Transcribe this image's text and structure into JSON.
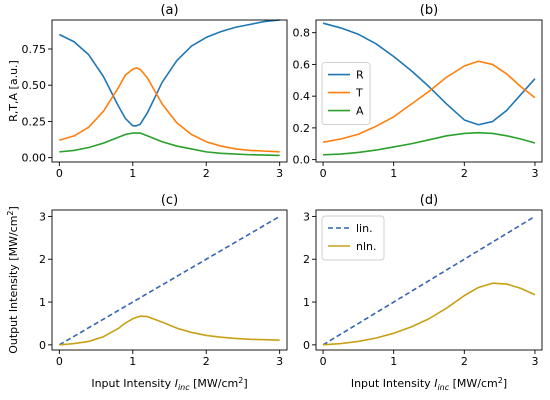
{
  "colors": {
    "R": "#1f77b4",
    "T": "#ff7f0e",
    "A": "#2ca02c",
    "lin": "#3465b4",
    "nln": "#c8a017"
  },
  "chart_data": [
    {
      "type": "line",
      "title": "(a)",
      "xlabel": "",
      "ylabel": "R,T,A [a.u.]",
      "xlim": [
        -0.1,
        3.1
      ],
      "ylim": [
        -0.03,
        0.95
      ],
      "xticks": [
        0,
        1,
        2,
        3
      ],
      "xtick_labels": [
        "0",
        "1",
        "2",
        "3"
      ],
      "yticks": [
        0.0,
        0.25,
        0.5,
        0.75
      ],
      "ytick_labels": [
        "0.00",
        "0.25",
        "0.50",
        "0.75"
      ],
      "legend": null,
      "series": [
        {
          "key": "R",
          "style": "solid",
          "x": [
            0,
            0.2,
            0.4,
            0.6,
            0.8,
            0.9,
            1.0,
            1.05,
            1.1,
            1.2,
            1.4,
            1.6,
            1.8,
            2.0,
            2.2,
            2.4,
            2.6,
            2.8,
            3.0
          ],
          "y": [
            0.85,
            0.8,
            0.71,
            0.56,
            0.36,
            0.27,
            0.22,
            0.22,
            0.23,
            0.31,
            0.52,
            0.67,
            0.77,
            0.83,
            0.87,
            0.9,
            0.92,
            0.94,
            0.95
          ]
        },
        {
          "key": "T",
          "style": "solid",
          "x": [
            0,
            0.2,
            0.4,
            0.6,
            0.8,
            0.9,
            1.0,
            1.05,
            1.1,
            1.2,
            1.4,
            1.6,
            1.8,
            2.0,
            2.2,
            2.4,
            2.6,
            2.8,
            3.0
          ],
          "y": [
            0.12,
            0.15,
            0.21,
            0.32,
            0.48,
            0.57,
            0.61,
            0.62,
            0.61,
            0.55,
            0.37,
            0.24,
            0.16,
            0.11,
            0.08,
            0.06,
            0.05,
            0.045,
            0.04
          ]
        },
        {
          "key": "A",
          "style": "solid",
          "x": [
            0,
            0.2,
            0.4,
            0.6,
            0.8,
            0.9,
            1.0,
            1.05,
            1.1,
            1.2,
            1.4,
            1.6,
            1.8,
            2.0,
            2.2,
            2.4,
            2.6,
            2.8,
            3.0
          ],
          "y": [
            0.04,
            0.05,
            0.07,
            0.1,
            0.14,
            0.16,
            0.17,
            0.17,
            0.17,
            0.15,
            0.11,
            0.08,
            0.06,
            0.04,
            0.03,
            0.025,
            0.02,
            0.018,
            0.015
          ]
        }
      ]
    },
    {
      "type": "line",
      "title": "(b)",
      "xlabel": "",
      "ylabel": "",
      "xlim": [
        -0.1,
        3.1
      ],
      "ylim": [
        -0.015,
        0.88
      ],
      "xticks": [
        0,
        1,
        2,
        3
      ],
      "xtick_labels": [
        "0",
        "1",
        "2",
        "3"
      ],
      "yticks": [
        0.0,
        0.2,
        0.4,
        0.6,
        0.8
      ],
      "ytick_labels": [
        "0.0",
        "0.2",
        "0.4",
        "0.6",
        "0.8"
      ],
      "legend": {
        "location": "center-left",
        "entries": [
          "R",
          "T",
          "A"
        ]
      },
      "series": [
        {
          "key": "R",
          "name": "R",
          "style": "solid",
          "x": [
            0,
            0.25,
            0.5,
            0.75,
            1.0,
            1.25,
            1.5,
            1.75,
            2.0,
            2.2,
            2.4,
            2.6,
            2.8,
            3.0
          ],
          "y": [
            0.86,
            0.83,
            0.79,
            0.73,
            0.65,
            0.56,
            0.46,
            0.35,
            0.25,
            0.22,
            0.24,
            0.31,
            0.41,
            0.51
          ]
        },
        {
          "key": "T",
          "name": "T",
          "style": "solid",
          "x": [
            0,
            0.25,
            0.5,
            0.75,
            1.0,
            1.25,
            1.5,
            1.75,
            2.0,
            2.2,
            2.4,
            2.6,
            2.8,
            3.0
          ],
          "y": [
            0.11,
            0.13,
            0.16,
            0.21,
            0.27,
            0.35,
            0.43,
            0.52,
            0.59,
            0.62,
            0.6,
            0.54,
            0.46,
            0.39
          ]
        },
        {
          "key": "A",
          "name": "A",
          "style": "solid",
          "x": [
            0,
            0.25,
            0.5,
            0.75,
            1.0,
            1.25,
            1.5,
            1.75,
            2.0,
            2.2,
            2.4,
            2.6,
            2.8,
            3.0
          ],
          "y": [
            0.03,
            0.035,
            0.045,
            0.06,
            0.08,
            0.1,
            0.125,
            0.15,
            0.165,
            0.17,
            0.165,
            0.15,
            0.13,
            0.105
          ]
        }
      ]
    },
    {
      "type": "line",
      "title": "(c)",
      "xlabel": "Input Intensity I_inc [MW/cm^2]",
      "ylabel": "Output Intensity [MW/cm^2]",
      "xlim": [
        -0.1,
        3.1
      ],
      "ylim": [
        -0.12,
        3.15
      ],
      "xticks": [
        0,
        1,
        2,
        3
      ],
      "xtick_labels": [
        "0",
        "1",
        "2",
        "3"
      ],
      "yticks": [
        0,
        1,
        2,
        3
      ],
      "ytick_labels": [
        "0",
        "1",
        "2",
        "3"
      ],
      "legend": null,
      "series": [
        {
          "key": "lin",
          "style": "dashed",
          "x": [
            0,
            3
          ],
          "y": [
            0,
            3
          ]
        },
        {
          "key": "nln",
          "style": "solid",
          "x": [
            0,
            0.2,
            0.4,
            0.6,
            0.8,
            0.9,
            1.0,
            1.1,
            1.2,
            1.4,
            1.6,
            1.8,
            2.0,
            2.2,
            2.4,
            2.6,
            2.8,
            3.0
          ],
          "y": [
            0.0,
            0.03,
            0.08,
            0.19,
            0.38,
            0.51,
            0.61,
            0.67,
            0.66,
            0.53,
            0.39,
            0.29,
            0.22,
            0.18,
            0.15,
            0.13,
            0.12,
            0.11
          ]
        }
      ]
    },
    {
      "type": "line",
      "title": "(d)",
      "xlabel": "Input Intensity I_inc [MW/cm^2]",
      "ylabel": "",
      "xlim": [
        -0.1,
        3.1
      ],
      "ylim": [
        -0.12,
        3.15
      ],
      "xticks": [
        0,
        1,
        2,
        3
      ],
      "xtick_labels": [
        "0",
        "1",
        "2",
        "3"
      ],
      "yticks": [
        0,
        1,
        2,
        3
      ],
      "ytick_labels": [
        "0",
        "1",
        "2",
        "3"
      ],
      "legend": {
        "location": "top-left",
        "entries": [
          "lin.",
          "nln."
        ]
      },
      "series": [
        {
          "key": "lin",
          "name": "lin.",
          "style": "dashed",
          "x": [
            0,
            3
          ],
          "y": [
            0,
            3
          ]
        },
        {
          "key": "nln",
          "name": "nln.",
          "style": "solid",
          "x": [
            0,
            0.25,
            0.5,
            0.75,
            1.0,
            1.25,
            1.5,
            1.75,
            2.0,
            2.2,
            2.4,
            2.6,
            2.8,
            3.0
          ],
          "y": [
            0.0,
            0.03,
            0.08,
            0.16,
            0.27,
            0.42,
            0.61,
            0.86,
            1.15,
            1.34,
            1.44,
            1.42,
            1.32,
            1.17
          ]
        }
      ]
    }
  ]
}
